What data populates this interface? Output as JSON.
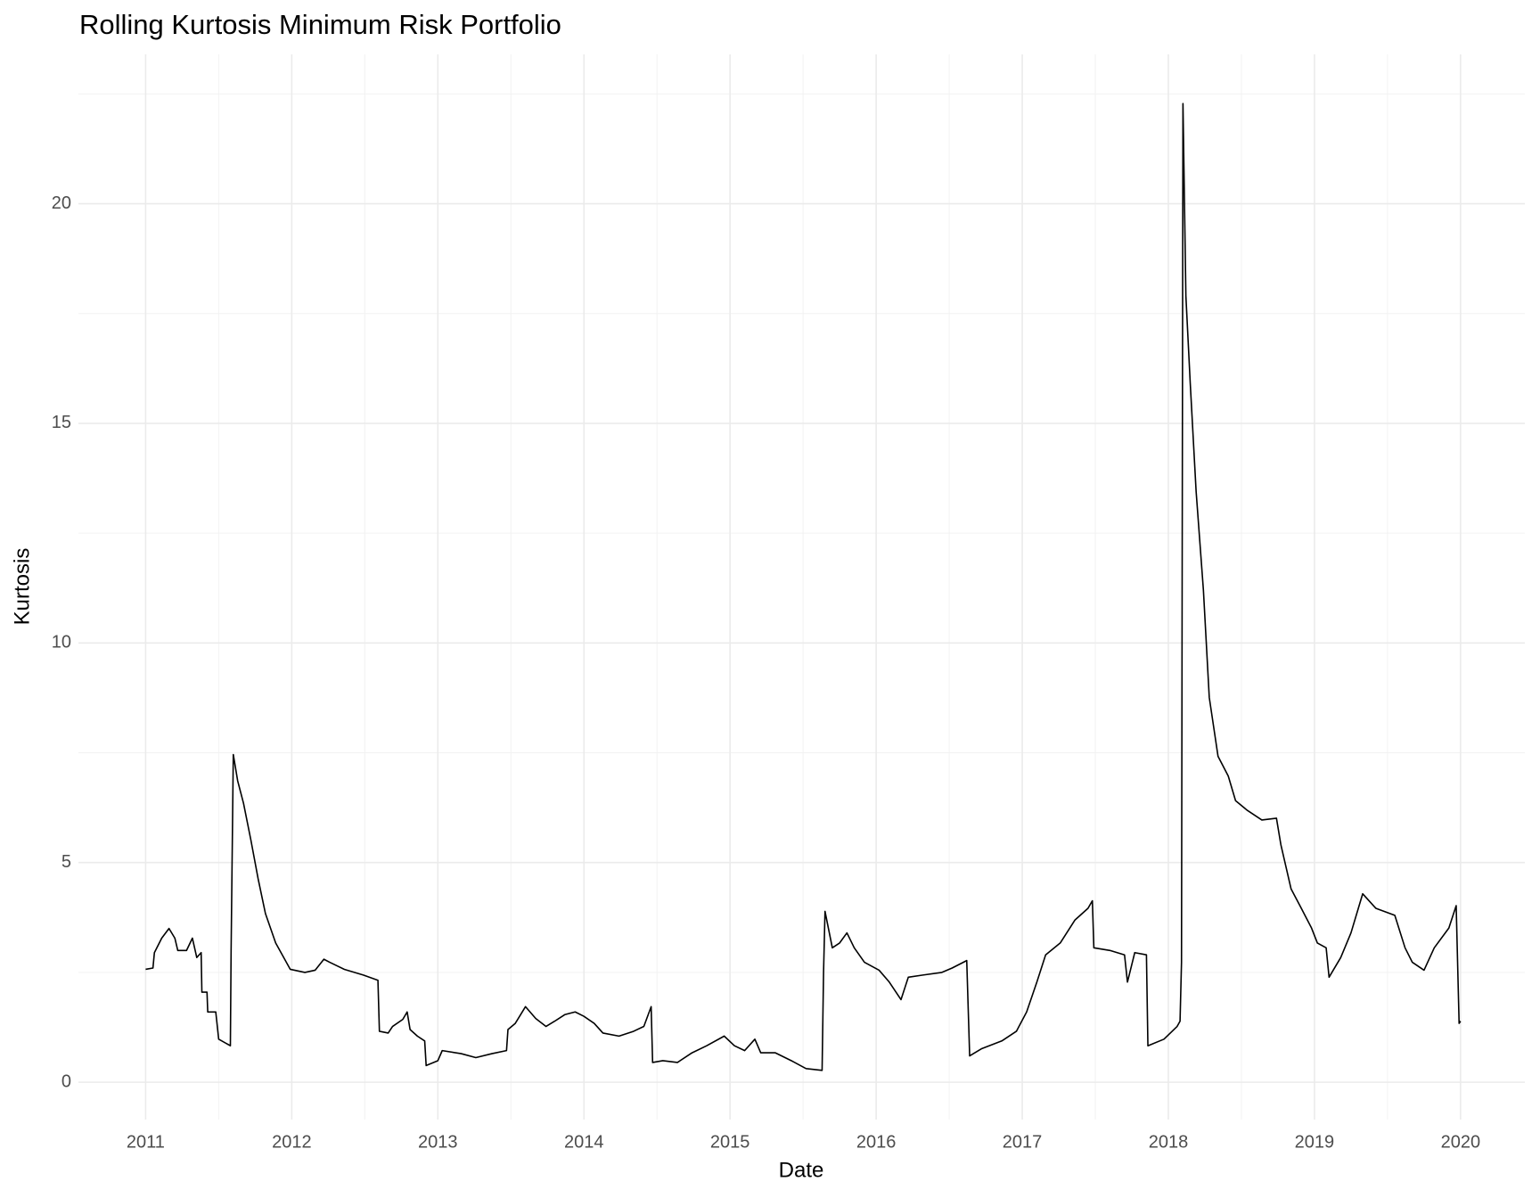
{
  "chart_data": {
    "type": "line",
    "title": "Rolling Kurtosis Minimum Risk Portfolio",
    "x_label": "Date",
    "y_label": "Kurtosis",
    "grid": true,
    "xlim": [
      2010.54,
      2020.44
    ],
    "ylim": [
      -0.85,
      23.4
    ],
    "xticks": [
      2011,
      2012,
      2013,
      2014,
      2015,
      2016,
      2017,
      2018,
      2019,
      2020
    ],
    "yticks": [
      0,
      5,
      10,
      15,
      20
    ],
    "series": [
      {
        "name": "Kurtosis",
        "color": "#000000",
        "x": [
          2011.0,
          2011.05,
          2011.06,
          2011.11,
          2011.16,
          2011.2,
          2011.22,
          2011.28,
          2011.32,
          2011.35,
          2011.38,
          2011.385,
          2011.42,
          2011.425,
          2011.48,
          2011.5,
          2011.58,
          2011.585,
          2011.6,
          2011.63,
          2011.67,
          2011.72,
          2011.77,
          2011.82,
          2011.89,
          2011.99,
          2012.09,
          2012.16,
          2012.22,
          2012.26,
          2012.36,
          2012.49,
          2012.59,
          2012.6,
          2012.66,
          2012.69,
          2012.76,
          2012.79,
          2012.81,
          2012.86,
          2012.91,
          2012.92,
          2013.0,
          2013.03,
          2013.16,
          2013.26,
          2013.37,
          2013.47,
          2013.48,
          2013.53,
          2013.6,
          2013.67,
          2013.74,
          2013.8,
          2013.87,
          2013.94,
          2014.0,
          2014.07,
          2014.13,
          2014.24,
          2014.34,
          2014.41,
          2014.46,
          2014.47,
          2014.54,
          2014.64,
          2014.74,
          2014.84,
          2014.96,
          2015.03,
          2015.1,
          2015.17,
          2015.21,
          2015.31,
          2015.42,
          2015.52,
          2015.63,
          2015.64,
          2015.65,
          2015.7,
          2015.75,
          2015.8,
          2015.85,
          2015.92,
          2016.02,
          2016.09,
          2016.17,
          2016.22,
          2016.32,
          2016.45,
          2016.52,
          2016.62,
          2016.64,
          2016.72,
          2016.86,
          2016.96,
          2017.03,
          2017.1,
          2017.16,
          2017.26,
          2017.36,
          2017.45,
          2017.48,
          2017.49,
          2017.6,
          2017.7,
          2017.72,
          2017.77,
          2017.85,
          2017.86,
          2017.97,
          2018.06,
          2018.08,
          2018.09,
          2018.1,
          2018.12,
          2018.15,
          2018.19,
          2018.24,
          2018.28,
          2018.34,
          2018.41,
          2018.46,
          2018.54,
          2018.64,
          2018.74,
          2018.77,
          2018.84,
          2018.91,
          2018.98,
          2019.02,
          2019.08,
          2019.1,
          2019.18,
          2019.25,
          2019.33,
          2019.42,
          2019.55,
          2019.62,
          2019.67,
          2019.75,
          2019.82,
          2019.92,
          2019.97,
          2019.99,
          2020.0
        ],
        "values": [
          2.57,
          2.6,
          2.95,
          3.28,
          3.5,
          3.28,
          3.0,
          3.0,
          3.28,
          2.84,
          2.95,
          2.05,
          2.05,
          1.6,
          1.6,
          0.98,
          0.83,
          3.0,
          7.46,
          6.86,
          6.35,
          5.52,
          4.63,
          3.84,
          3.17,
          2.57,
          2.5,
          2.55,
          2.8,
          2.73,
          2.57,
          2.44,
          2.32,
          1.16,
          1.12,
          1.27,
          1.43,
          1.6,
          1.2,
          1.05,
          0.94,
          0.38,
          0.49,
          0.72,
          0.65,
          0.56,
          0.65,
          0.72,
          1.2,
          1.34,
          1.72,
          1.45,
          1.27,
          1.39,
          1.54,
          1.6,
          1.5,
          1.34,
          1.12,
          1.05,
          1.16,
          1.27,
          1.72,
          0.45,
          0.49,
          0.45,
          0.67,
          0.83,
          1.05,
          0.83,
          0.72,
          0.98,
          0.67,
          0.67,
          0.49,
          0.31,
          0.27,
          2.5,
          3.89,
          3.06,
          3.17,
          3.4,
          3.06,
          2.73,
          2.55,
          2.28,
          1.88,
          2.39,
          2.44,
          2.5,
          2.6,
          2.77,
          0.6,
          0.76,
          0.94,
          1.16,
          1.6,
          2.28,
          2.9,
          3.17,
          3.69,
          3.96,
          4.13,
          3.06,
          3.0,
          2.9,
          2.28,
          2.95,
          2.9,
          0.83,
          0.98,
          1.27,
          1.39,
          2.73,
          22.28,
          17.9,
          15.9,
          13.45,
          11.2,
          8.76,
          7.42,
          6.97,
          6.41,
          6.19,
          5.97,
          6.01,
          5.41,
          4.4,
          3.96,
          3.51,
          3.17,
          3.06,
          2.39,
          2.84,
          3.4,
          4.29,
          3.96,
          3.8,
          3.06,
          2.73,
          2.55,
          3.06,
          3.51,
          4.02,
          1.34,
          1.39
        ]
      }
    ]
  }
}
